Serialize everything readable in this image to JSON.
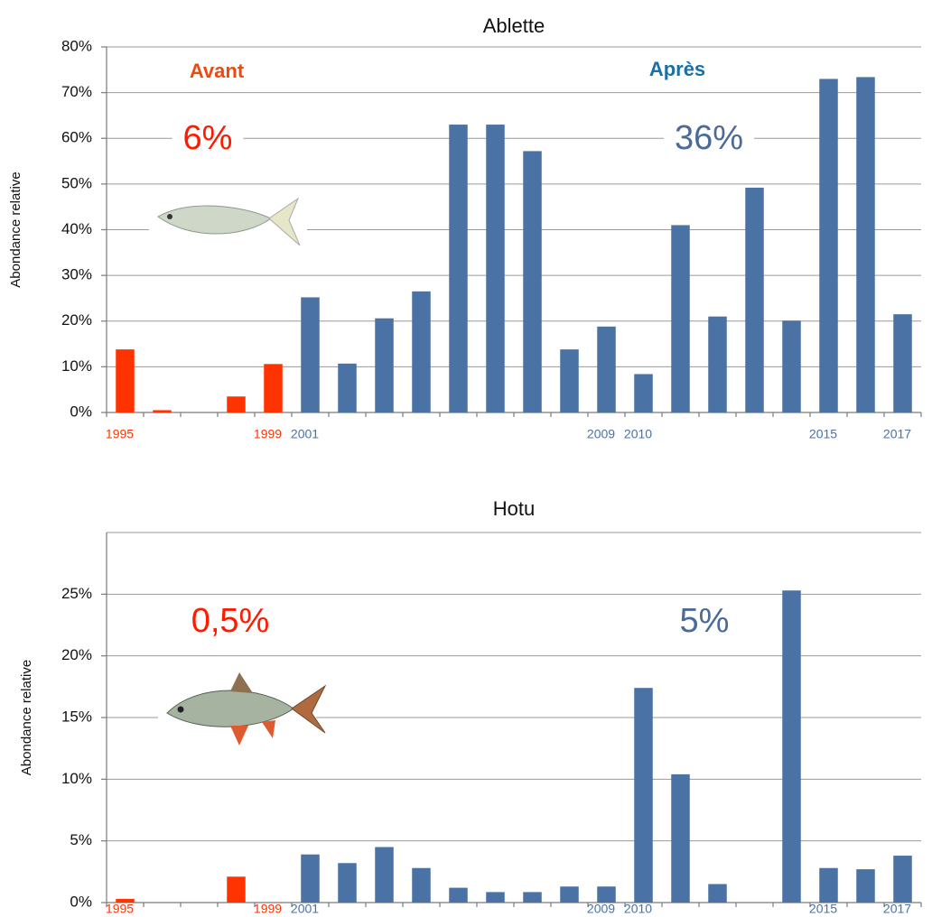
{
  "chart_data": [
    {
      "type": "bar",
      "title": "Ablette",
      "y_label": "Abondance relative",
      "categories": [
        "1995",
        null,
        null,
        null,
        "1999",
        "2001",
        null,
        null,
        null,
        null,
        null,
        null,
        null,
        "2009",
        "2010",
        null,
        null,
        null,
        null,
        "2015",
        null,
        "2017"
      ],
      "values": [
        13.8,
        0.5,
        null,
        3.5,
        10.6,
        25.2,
        10.7,
        20.6,
        26.5,
        63,
        63,
        57.2,
        13.8,
        18.8,
        8.4,
        41,
        21,
        49.2,
        20.1,
        73,
        73.4,
        21.5
      ],
      "colors": [
        "#ff3300",
        "#ff3300",
        "#ff3300",
        "#ff3300",
        "#ff3300",
        "#4a72a4",
        "#4a72a4",
        "#4a72a4",
        "#4a72a4",
        "#4a72a4",
        "#4a72a4",
        "#4a72a4",
        "#4a72a4",
        "#4a72a4",
        "#4a72a4",
        "#4a72a4",
        "#4a72a4",
        "#4a72a4",
        "#4a72a4",
        "#4a72a4",
        "#4a72a4",
        "#4a72a4"
      ],
      "ylim": [
        0,
        80
      ],
      "yticks": [
        {
          "value": 0,
          "label": "0%"
        },
        {
          "value": 10,
          "label": "10%"
        },
        {
          "value": 20,
          "label": "20%"
        },
        {
          "value": 30,
          "label": "30%"
        },
        {
          "value": 40,
          "label": "40%"
        },
        {
          "value": 50,
          "label": "50%"
        },
        {
          "value": 60,
          "label": "60%"
        },
        {
          "value": 70,
          "label": "70%"
        },
        {
          "value": 80,
          "label": "80%"
        }
      ],
      "grid": true,
      "annotations": [
        {
          "text": "Avant",
          "color": "#ee4a10",
          "bold": true
        },
        {
          "text": "Après",
          "color": "#1a6fa8",
          "bold": true
        },
        {
          "text": "6%",
          "color": "#ff1a00",
          "bold": false
        },
        {
          "text": "36%",
          "color": "#4a6a9a",
          "bold": false
        }
      ]
    },
    {
      "type": "bar",
      "title": "Hotu",
      "y_label": "Abondance relative",
      "categories": [
        "1995",
        null,
        null,
        null,
        "1999",
        "2001",
        null,
        null,
        null,
        null,
        null,
        null,
        null,
        "2009",
        "2010",
        null,
        null,
        null,
        null,
        "2015",
        null,
        "2017"
      ],
      "values": [
        0.3,
        null,
        null,
        2.1,
        null,
        3.9,
        3.2,
        4.5,
        2.8,
        1.2,
        0.85,
        0.85,
        1.3,
        1.3,
        17.4,
        10.4,
        1.5,
        null,
        25.3,
        2.8,
        2.7,
        3.8
      ],
      "colors": [
        "#ff3300",
        "#ff3300",
        "#ff3300",
        "#ff3300",
        "#ff3300",
        "#4a72a4",
        "#4a72a4",
        "#4a72a4",
        "#4a72a4",
        "#4a72a4",
        "#4a72a4",
        "#4a72a4",
        "#4a72a4",
        "#4a72a4",
        "#4a72a4",
        "#4a72a4",
        "#4a72a4",
        "#4a72a4",
        "#4a72a4",
        "#4a72a4",
        "#4a72a4",
        "#4a72a4"
      ],
      "ylim": [
        0,
        30
      ],
      "yticks": [
        {
          "value": 0,
          "label": "0%"
        },
        {
          "value": 5,
          "label": "5%"
        },
        {
          "value": 10,
          "label": "10%"
        },
        {
          "value": 15,
          "label": "15%"
        },
        {
          "value": 20,
          "label": "20%"
        },
        {
          "value": 25,
          "label": "25%"
        }
      ],
      "grid": true,
      "annotations": [
        {
          "text": "0,5%",
          "color": "#ff1a00",
          "bold": false
        },
        {
          "text": "5%",
          "color": "#4a6a9a",
          "bold": false
        }
      ]
    }
  ]
}
